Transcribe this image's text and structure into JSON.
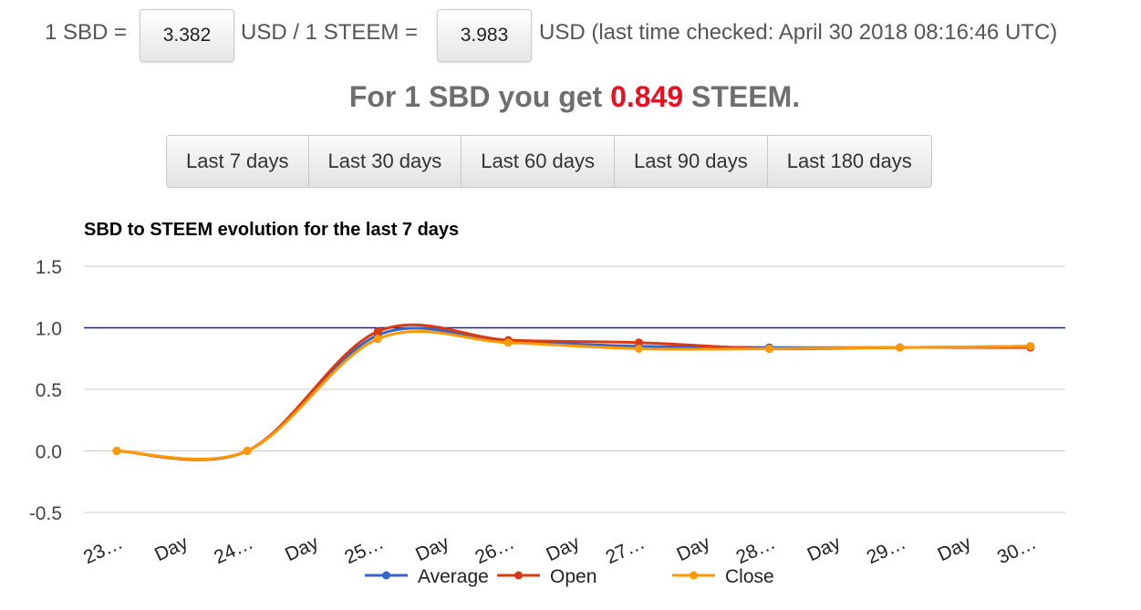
{
  "header": {
    "sbd_label": "1 SBD =",
    "sbd_value": "3.382",
    "usd_steem_label": "USD / 1 STEEM =",
    "steem_value": "3.983",
    "checked_label": "USD (last time checked: April 30 2018 08:16:46 UTC)"
  },
  "summary": {
    "prefix": "For 1 SBD you get",
    "value": "0.849",
    "suffix": "STEEM."
  },
  "buttons": [
    "Last 7 days",
    "Last 30 days",
    "Last 60 days",
    "Last 90 days",
    "Last 180 days"
  ],
  "chart_data": {
    "type": "line",
    "title": "SBD to STEEM evolution for the last 7 days",
    "categories": [
      "23…",
      "24…",
      "25…",
      "26…",
      "27…",
      "28…",
      "29…",
      "30…"
    ],
    "between_labels": [
      "Day",
      "Day",
      "Day",
      "Day",
      "Day",
      "Day",
      "Day"
    ],
    "series": [
      {
        "name": "Average",
        "color": "#3366cc",
        "values": [
          0,
          0,
          0.94,
          0.89,
          0.85,
          0.84,
          0.84,
          0.85
        ]
      },
      {
        "name": "Open",
        "color": "#dc3912",
        "values": [
          0,
          0,
          0.97,
          0.9,
          0.88,
          0.83,
          0.84,
          0.84
        ]
      },
      {
        "name": "Close",
        "color": "#ff9900",
        "values": [
          0,
          0,
          0.91,
          0.88,
          0.83,
          0.83,
          0.84,
          0.85
        ]
      }
    ],
    "ylim": [
      -0.5,
      1.5
    ],
    "yticks": [
      -0.5,
      {
        "value": 0,
        "label": "0.0"
      },
      0.5,
      {
        "value": 1,
        "label": "1.0"
      },
      1.5
    ],
    "reference_line": {
      "value": 1,
      "color": "#1a1aa6"
    },
    "grid": true,
    "smooth": true,
    "legend": "bottom"
  }
}
